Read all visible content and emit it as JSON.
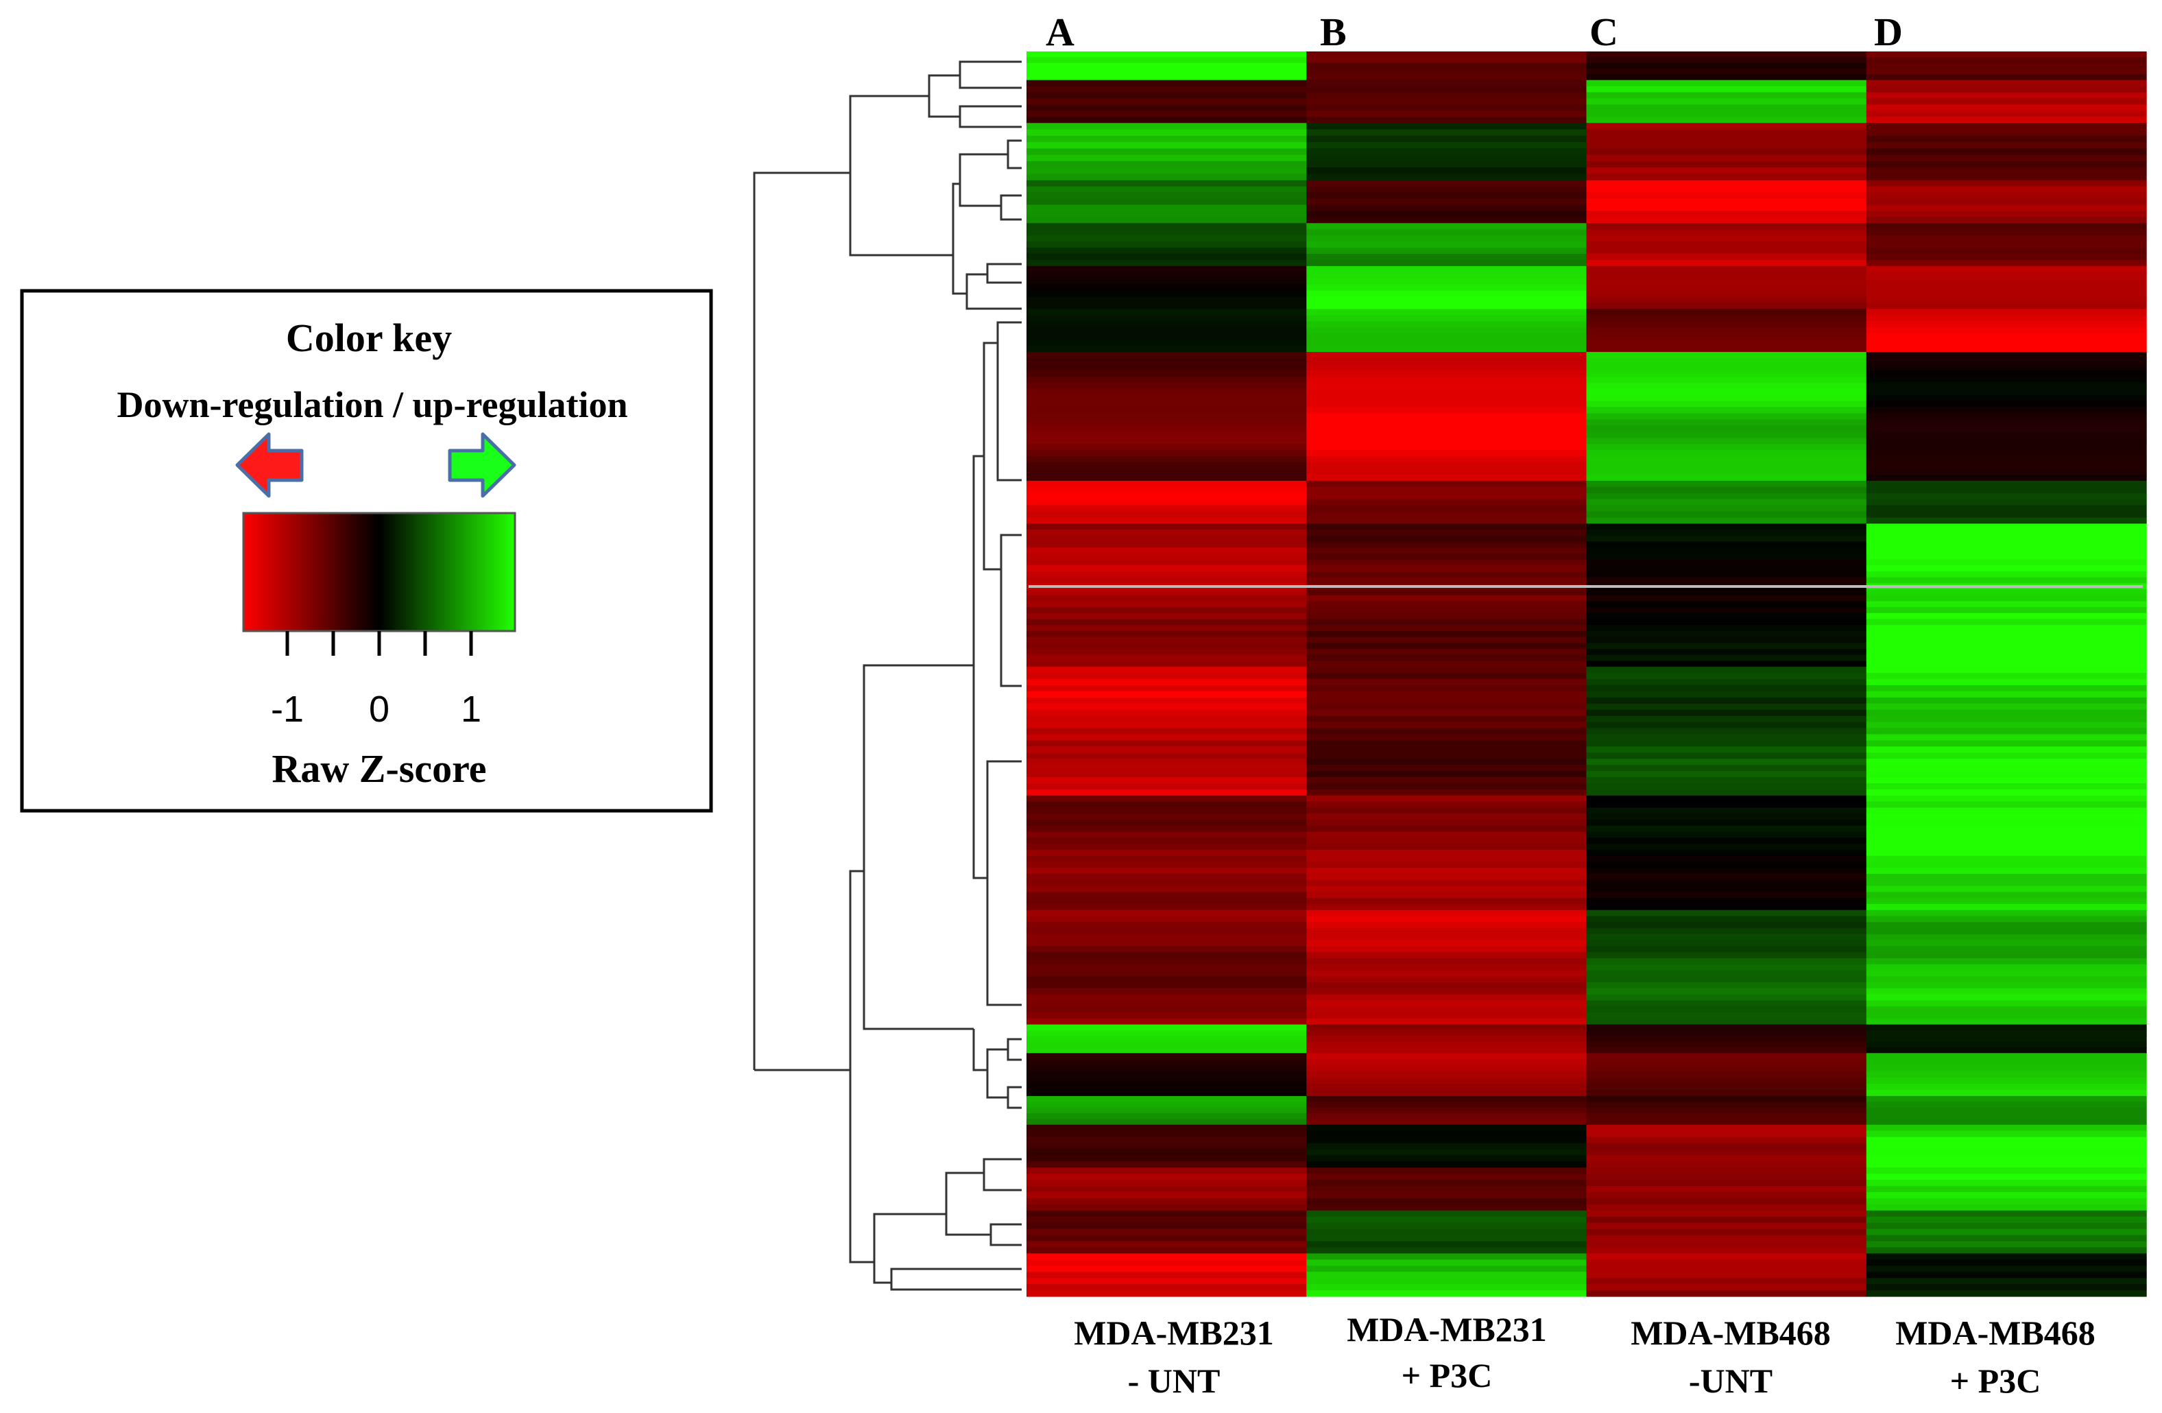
{
  "chart_data": {
    "type": "heatmap",
    "title": "",
    "colormap": {
      "low": "#ff0000",
      "mid": "#000000",
      "high": "#22ff00"
    },
    "columns": [
      {
        "letter": "A",
        "label_line1": "MDA-MB231",
        "label_line2": "- UNT"
      },
      {
        "letter": "B",
        "label_line1": "MDA-MB231",
        "label_line2": "+ P3C"
      },
      {
        "letter": "C",
        "label_line1": "MDA-MB468",
        "label_line2": "-UNT"
      },
      {
        "letter": "D",
        "label_line1": "MDA-MB468",
        "label_line2": "+ P3C"
      }
    ],
    "row_blocks": [
      {
        "weight": 2,
        "values": [
          1.4,
          -0.6,
          -0.2,
          -0.5
        ]
      },
      {
        "weight": 3,
        "values": [
          -0.3,
          -0.4,
          1.3,
          -1.0
        ]
      },
      {
        "weight": 4,
        "values": [
          1.0,
          0.2,
          -1.0,
          -0.6
        ]
      },
      {
        "weight": 3,
        "values": [
          0.8,
          -0.3,
          -1.3,
          -0.8
        ]
      },
      {
        "weight": 3,
        "values": [
          0.4,
          0.9,
          -1.1,
          -0.7
        ]
      },
      {
        "weight": 3,
        "values": [
          -0.1,
          1.4,
          -0.9,
          -1.0
        ]
      },
      {
        "weight": 3,
        "values": [
          0.2,
          1.2,
          -0.6,
          -1.4
        ]
      },
      {
        "weight": 9,
        "values": [
          -0.6,
          -1.4,
          1.2,
          -0.1
        ]
      },
      {
        "weight": 3,
        "values": [
          -1.3,
          -0.6,
          1.0,
          0.5
        ]
      },
      {
        "weight": 5,
        "values": [
          -1.0,
          -0.5,
          0.0,
          1.5
        ]
      },
      {
        "weight": 5,
        "values": [
          -0.9,
          -0.6,
          0.0,
          1.5
        ]
      },
      {
        "weight": 9,
        "values": [
          -1.2,
          -0.5,
          0.4,
          1.3
        ]
      },
      {
        "weight": 8,
        "values": [
          -0.7,
          -0.9,
          0.0,
          1.4
        ]
      },
      {
        "weight": 8,
        "values": [
          -0.7,
          -1.1,
          0.5,
          1.1
        ]
      },
      {
        "weight": 2,
        "values": [
          1.3,
          -1.0,
          -0.4,
          0.0
        ]
      },
      {
        "weight": 3,
        "values": [
          -0.2,
          -1.1,
          -0.6,
          1.3
        ]
      },
      {
        "weight": 2,
        "values": [
          1.0,
          -0.5,
          -0.4,
          0.8
        ]
      },
      {
        "weight": 3,
        "values": [
          -0.5,
          0.0,
          -1.0,
          1.4
        ]
      },
      {
        "weight": 3,
        "values": [
          -0.8,
          -0.4,
          -0.7,
          1.5
        ]
      },
      {
        "weight": 3,
        "values": [
          -0.6,
          0.4,
          -1.0,
          0.6
        ]
      },
      {
        "weight": 3,
        "values": [
          -1.4,
          1.2,
          -0.9,
          0.2
        ]
      }
    ],
    "color_key": {
      "title": "Color key",
      "subtitle": "Down-regulation / up-regulation",
      "ticks": [
        "-1",
        "0",
        "1"
      ],
      "xlabel": "Raw Z-score",
      "down_color": "#ff0000",
      "up_color": "#22ff00"
    }
  }
}
